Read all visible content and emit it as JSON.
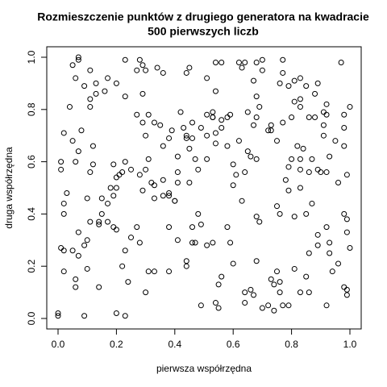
{
  "chart_data": {
    "type": "scatter",
    "title": [
      "Rozmieszczenie punktów z drugiego generatora na kwadracie",
      "500 pierwszych liczb"
    ],
    "xlabel": "pierwsza współrzędna",
    "ylabel": "druga współrzędna",
    "xlim": [
      0,
      1
    ],
    "ylim": [
      0,
      1
    ],
    "xticks": [
      {
        "value": 0,
        "label": "0.0"
      },
      {
        "value": 0.2,
        "label": "0.2"
      },
      {
        "value": 0.4,
        "label": "0.4"
      },
      {
        "value": 0.6,
        "label": "0.6"
      },
      {
        "value": 0.8,
        "label": "0.8"
      },
      {
        "value": 1,
        "label": "1.0"
      }
    ],
    "yticks": [
      {
        "value": 0,
        "label": "0.0"
      },
      {
        "value": 0.2,
        "label": "0.2"
      },
      {
        "value": 0.4,
        "label": "0.4"
      },
      {
        "value": 0.6,
        "label": "0.6"
      },
      {
        "value": 0.8,
        "label": "0.8"
      },
      {
        "value": 1,
        "label": "1.0"
      }
    ],
    "color": "#000000",
    "x": [
      0.05,
      0.07,
      0.07,
      0.11,
      0.06,
      0.09,
      0.13,
      0.17,
      0.23,
      0.28,
      0.27,
      0.3,
      0.29,
      0.34,
      0.36,
      0.44,
      0.45,
      0.51,
      0.54,
      0.56,
      0.54,
      0.62,
      0.64,
      0.63,
      0.67,
      0.68,
      0.7,
      0.7,
      0.77,
      0.77,
      0.76,
      0.79,
      0.81,
      0.83,
      0.85,
      0.88,
      0.89,
      0.97,
      1.0,
      0.92,
      0.91,
      0.98,
      0.98,
      0.88,
      0.86,
      0.83,
      0.83,
      0.81,
      0.8,
      0.77,
      0.75,
      0.73,
      0.68,
      0.69,
      0.68,
      0.67,
      0.65,
      0.62,
      0.59,
      0.58,
      0.53,
      0.53,
      0.56,
      0.56,
      0.54,
      0.54,
      0.49,
      0.46,
      0.43,
      0.44,
      0.45,
      0.44,
      0.39,
      0.38,
      0.36,
      0.35,
      0.33,
      0.31,
      0.29,
      0.27,
      0.29,
      0.23,
      0.2,
      0.16,
      0.11,
      0.11,
      0.04,
      0.02,
      0.05,
      0.07,
      0.06,
      0.12,
      0.12,
      0.11,
      0.1,
      0.01,
      0.01,
      0.03,
      0.02,
      0.02,
      0.01,
      0.02,
      0.02,
      0.0,
      0.0,
      0.07,
      0.07,
      0.1,
      0.05,
      0.09,
      0.06,
      0.06,
      0.1,
      0.14,
      0.09,
      0.2,
      0.23,
      0.22,
      0.31,
      0.3,
      0.24,
      0.23,
      0.25,
      0.27,
      0.28,
      0.33,
      0.38,
      0.41,
      0.44,
      0.44,
      0.46,
      0.47,
      0.46,
      0.49,
      0.51,
      0.53,
      0.55,
      0.54,
      0.55,
      0.49,
      0.56,
      0.58,
      0.59,
      0.6,
      0.64,
      0.64,
      0.66,
      0.68,
      0.7,
      0.72,
      0.74,
      0.73,
      0.74,
      0.76,
      0.75,
      0.77,
      0.79,
      0.81,
      0.83,
      0.85,
      0.86,
      0.86,
      0.89,
      0.93,
      0.93,
      0.92,
      0.94,
      0.96,
      0.98,
      0.99,
      0.98,
      0.99,
      1.0,
      0.99,
      0.92,
      0.89,
      0.87,
      0.83,
      0.83,
      0.79,
      0.78,
      0.75,
      0.76,
      0.68,
      0.69,
      0.63,
      0.61,
      0.6,
      0.64,
      0.66,
      0.68,
      0.65,
      0.58,
      0.6,
      0.51,
      0.48,
      0.45,
      0.41,
      0.38,
      0.38,
      0.36,
      0.41,
      0.4,
      0.4,
      0.33,
      0.33,
      0.29,
      0.32,
      0.28,
      0.3,
      0.31,
      0.21,
      0.2,
      0.22,
      0.2,
      0.18,
      0.19,
      0.17,
      0.15,
      0.14,
      0.11,
      0.17,
      0.19,
      0.14,
      0.15,
      0.19,
      0.23,
      0.25,
      0.2,
      0.36,
      0.41,
      0.51,
      0.47,
      0.48,
      0.38,
      0.79,
      0.82,
      0.83,
      0.84,
      0.87,
      0.92,
      0.9,
      0.89,
      0.86,
      0.81,
      0.93,
      0.91,
      0.95,
      0.98,
      0.96,
      0.99,
      0.99,
      0.91,
      0.92,
      0.85,
      0.73,
      0.72,
      0.8,
      0.51,
      0.53,
      0.42,
      0.46,
      0.3,
      0.13,
      0.08,
      0.67,
      0.76
    ],
    "y": [
      0.97,
      0.99,
      1.0,
      0.95,
      0.92,
      0.89,
      0.9,
      0.92,
      0.99,
      0.99,
      0.95,
      0.95,
      0.97,
      0.96,
      0.94,
      0.94,
      0.96,
      0.92,
      0.98,
      0.98,
      0.87,
      0.98,
      0.98,
      0.96,
      0.91,
      0.98,
      0.99,
      0.95,
      0.99,
      0.94,
      0.9,
      0.89,
      0.91,
      0.92,
      0.89,
      0.86,
      0.9,
      0.98,
      0.81,
      0.82,
      0.79,
      0.78,
      0.73,
      0.77,
      0.77,
      0.81,
      0.84,
      0.83,
      0.77,
      0.75,
      0.68,
      0.72,
      0.85,
      0.81,
      0.77,
      0.74,
      0.79,
      0.68,
      0.78,
      0.77,
      0.79,
      0.77,
      0.76,
      0.73,
      0.71,
      0.67,
      0.73,
      0.75,
      0.73,
      0.7,
      0.65,
      0.69,
      0.72,
      0.69,
      0.66,
      0.74,
      0.75,
      0.78,
      0.75,
      0.78,
      0.86,
      0.85,
      0.9,
      0.87,
      0.81,
      0.84,
      0.81,
      0.71,
      0.68,
      0.64,
      0.6,
      0.66,
      0.59,
      0.56,
      0.46,
      0.6,
      0.57,
      0.48,
      0.44,
      0.4,
      0.27,
      0.26,
      0.18,
      0.02,
      0.01,
      0.33,
      0.24,
      0.3,
      0.26,
      0.28,
      0.15,
      0.12,
      0.19,
      0.12,
      0.01,
      0.02,
      0.01,
      0.2,
      0.18,
      0.1,
      0.14,
      0.26,
      0.31,
      0.35,
      0.29,
      0.18,
      0.18,
      0.3,
      0.2,
      0.22,
      0.29,
      0.29,
      0.35,
      0.36,
      0.28,
      0.29,
      0.13,
      0.06,
      0.04,
      0.05,
      0.16,
      0.35,
      0.29,
      0.21,
      0.1,
      0.06,
      0.11,
      0.22,
      0.04,
      0.05,
      0.03,
      0.15,
      0.13,
      0.14,
      0.18,
      0.05,
      0.05,
      0.19,
      0.1,
      0.16,
      0.1,
      0.25,
      0.28,
      0.29,
      0.25,
      0.35,
      0.18,
      0.21,
      0.12,
      0.11,
      0.4,
      0.33,
      0.27,
      0.09,
      0.05,
      0.32,
      0.44,
      0.5,
      0.57,
      0.49,
      0.53,
      0.43,
      0.4,
      0.39,
      0.37,
      0.45,
      0.55,
      0.51,
      0.56,
      0.62,
      0.61,
      0.64,
      0.66,
      0.59,
      0.61,
      0.57,
      0.52,
      0.56,
      0.48,
      0.47,
      0.47,
      0.52,
      0.45,
      0.45,
      0.51,
      0.46,
      0.49,
      0.52,
      0.55,
      0.57,
      0.61,
      0.55,
      0.54,
      0.56,
      0.5,
      0.5,
      0.47,
      0.44,
      0.4,
      0.37,
      0.37,
      0.37,
      0.35,
      0.36,
      0.46,
      0.59,
      0.6,
      0.57,
      0.34,
      0.53,
      0.62,
      0.7,
      0.61,
      0.4,
      0.35,
      0.58,
      0.66,
      0.61,
      0.65,
      0.61,
      0.56,
      0.56,
      0.57,
      0.56,
      0.39,
      0.62,
      0.7,
      0.68,
      0.66,
      0.52,
      0.55,
      0.38,
      0.74,
      0.78,
      0.4,
      0.74,
      0.72,
      0.61,
      0.78,
      0.77,
      0.79,
      0.69,
      0.7,
      0.86,
      0.72,
      0.09,
      0.1
    ]
  }
}
